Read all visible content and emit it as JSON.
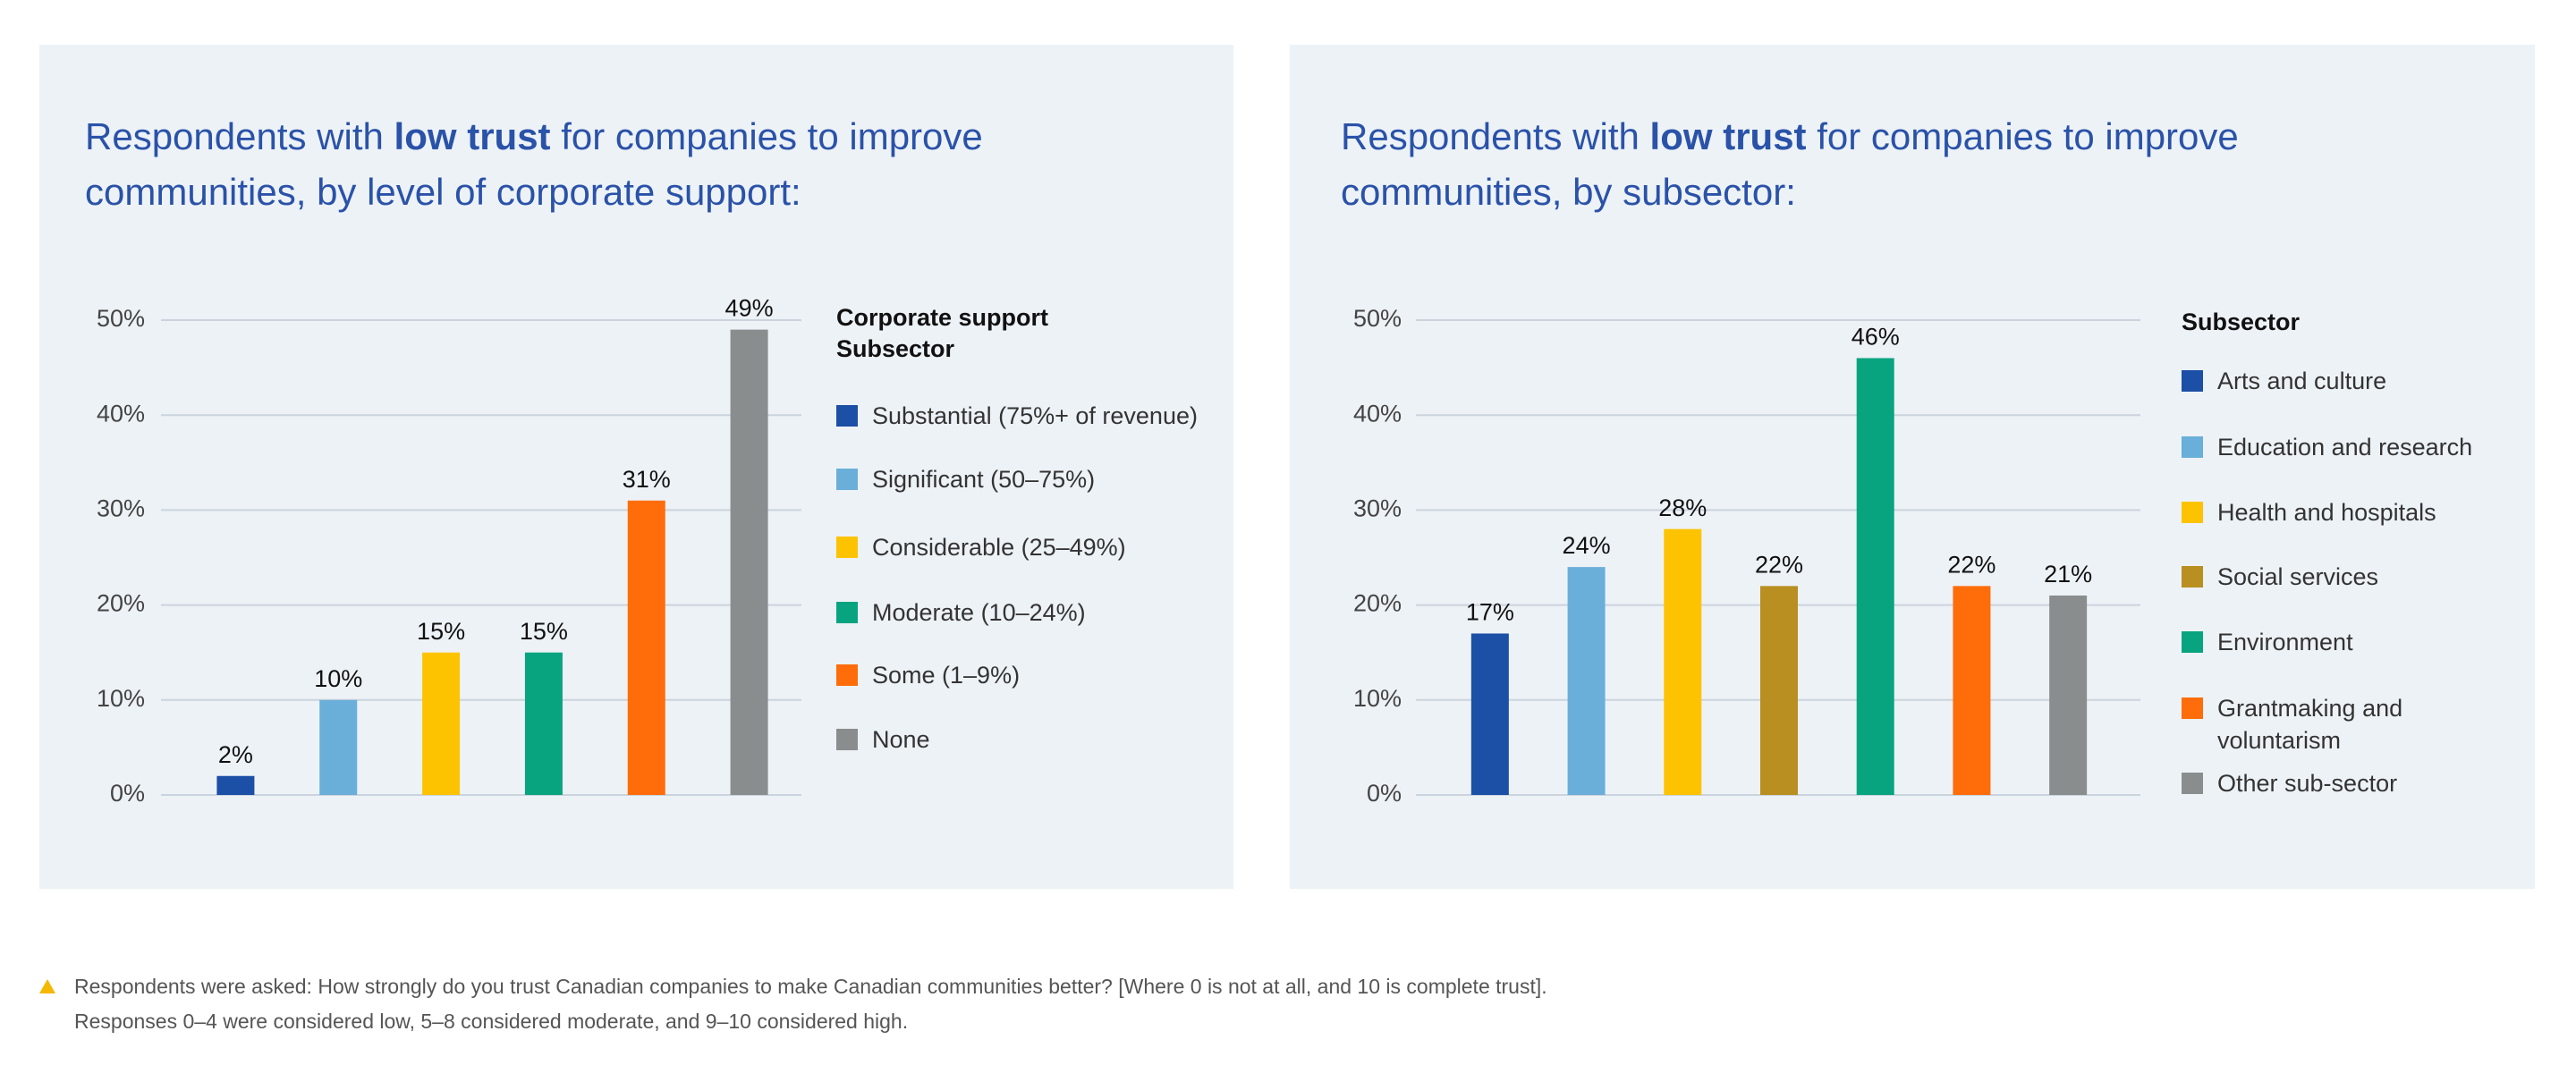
{
  "chart_data": [
    {
      "type": "bar",
      "title_start": "Respondents with",
      "title_emphasis": "low trust",
      "title_end": "for companies to improve communities, by level of corporate support:",
      "legend_title": "Corporate support Subsector",
      "categories": [
        "Substantial (75%+ of revenue)",
        "Significant (50–75%)",
        "Considerable (25–49%)",
        "Moderate (10–24%)",
        "Some (1–9%)",
        "None"
      ],
      "values": [
        2,
        10,
        15,
        15,
        31,
        49
      ],
      "value_labels": [
        "2%",
        "10%",
        "15%",
        "15%",
        "31%",
        "49%"
      ],
      "colors": [
        "#1c4fa6",
        "#6aafd9",
        "#fdc300",
        "#08a47f",
        "#ff6d0a",
        "#8a8d8e"
      ],
      "ylim": [
        0,
        50
      ],
      "yticks": [
        {
          "value": 0,
          "label": "0%"
        },
        {
          "value": 10,
          "label": "10%"
        },
        {
          "value": 20,
          "label": "20%"
        },
        {
          "value": 30,
          "label": "30%"
        },
        {
          "value": 40,
          "label": "40%"
        },
        {
          "value": 50,
          "label": "50%"
        }
      ],
      "grid": true
    },
    {
      "type": "bar",
      "title_start": "Respondents with",
      "title_emphasis": "low trust",
      "title_end": "for companies to improve communities, by subsector:",
      "legend_title": "Subsector",
      "categories": [
        "Arts and culture",
        "Education and research",
        "Health and hospitals",
        "Social services",
        "Environment",
        "Grantmaking and voluntarism",
        "Other sub-sector"
      ],
      "values": [
        17,
        24,
        28,
        22,
        46,
        22,
        21
      ],
      "value_labels": [
        "17%",
        "24%",
        "28%",
        "22%",
        "46%",
        "22%",
        "21%"
      ],
      "colors": [
        "#1c4fa6",
        "#6aafd9",
        "#fdc300",
        "#b88f20",
        "#08a47f",
        "#ff6d0a",
        "#8a8d8e"
      ],
      "ylim": [
        0,
        50
      ],
      "yticks": [
        {
          "value": 0,
          "label": "0%"
        },
        {
          "value": 10,
          "label": "10%"
        },
        {
          "value": 20,
          "label": "20%"
        },
        {
          "value": 30,
          "label": "30%"
        },
        {
          "value": 40,
          "label": "40%"
        },
        {
          "value": 50,
          "label": "50%"
        }
      ],
      "grid": true
    }
  ],
  "footnote": [
    "Respondents were asked: How strongly do you trust Canadian companies to make Canadian communities better? [Where 0 is not at all, and 10 is complete trust].",
    "Responses 0–4 were considered low, 5–8 considered moderate, and 9–10 considered high."
  ]
}
